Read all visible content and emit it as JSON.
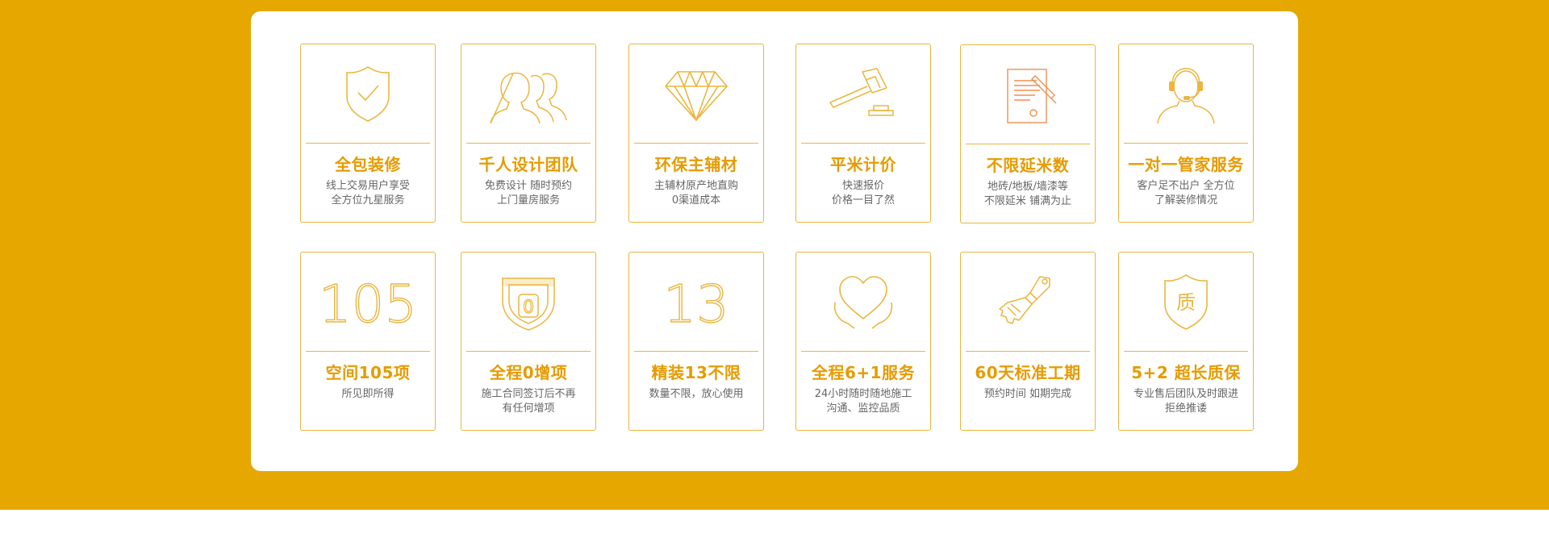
{
  "colors": {
    "band": "#e6a800",
    "accent": "#eab63f",
    "title": "#e69b00",
    "text": "#666666"
  },
  "cards": [
    {
      "icon": "shield-check-icon",
      "title": "全包装修",
      "lines": [
        "线上交易用户享受",
        "全方位九星服务"
      ]
    },
    {
      "icon": "people-team-icon",
      "title": "千人设计团队",
      "lines": [
        "免费设计 随时预约",
        "上门量房服务"
      ]
    },
    {
      "icon": "diamond-icon",
      "title": "环保主辅材",
      "lines": [
        "主辅材原产地直购",
        "0渠道成本"
      ]
    },
    {
      "icon": "gavel-icon",
      "title": "平米计价",
      "lines": [
        "快速报价",
        "价格一目了然"
      ]
    },
    {
      "icon": "document-pen-icon",
      "title": "不限延米数",
      "lines": [
        "地砖/地板/墙漆等",
        "不限延米 铺满为止"
      ]
    },
    {
      "icon": "headset-agent-icon",
      "title": "一对一管家服务",
      "lines": [
        "客户足不出户 全方位",
        "了解装修情况"
      ]
    },
    {
      "icon": "number-105-icon",
      "number": "105",
      "title": "空间105项",
      "lines": [
        "所见即所得"
      ]
    },
    {
      "icon": "shield-zero-icon",
      "number": "0",
      "title": "全程0增项",
      "lines": [
        "施工合同签订后不再",
        "有任何增项"
      ]
    },
    {
      "icon": "number-13-icon",
      "number": "13",
      "title": "精装13不限",
      "lines": [
        "数量不限，放心使用"
      ]
    },
    {
      "icon": "heart-hands-icon",
      "title": "全程6+1服务",
      "lines": [
        "24小时随时随地施工",
        "沟通、监控品质"
      ]
    },
    {
      "icon": "paint-brush-icon",
      "title": "60天标准工期",
      "lines": [
        "预约时间 如期完成"
      ]
    },
    {
      "icon": "quality-shield-icon",
      "glyph": "质",
      "title": "5+2 超长质保",
      "lines": [
        "专业售后团队及时跟进",
        "拒绝推诿"
      ]
    }
  ]
}
